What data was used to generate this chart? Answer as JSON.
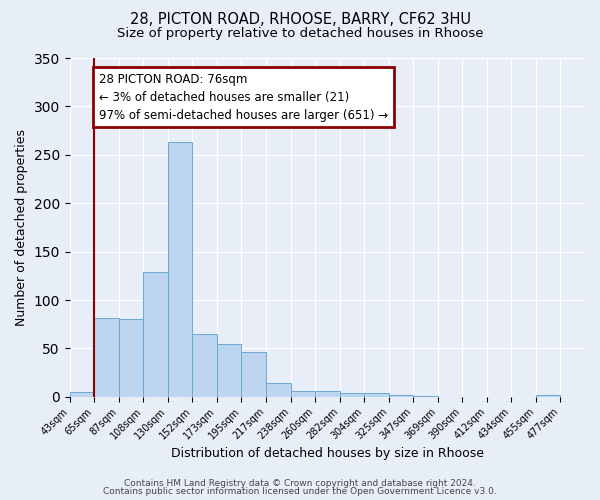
{
  "title1": "28, PICTON ROAD, RHOOSE, BARRY, CF62 3HU",
  "title2": "Size of property relative to detached houses in Rhoose",
  "xlabel": "Distribution of detached houses by size in Rhoose",
  "ylabel": "Number of detached properties",
  "bin_labels": [
    "43sqm",
    "65sqm",
    "87sqm",
    "108sqm",
    "130sqm",
    "152sqm",
    "173sqm",
    "195sqm",
    "217sqm",
    "238sqm",
    "260sqm",
    "282sqm",
    "304sqm",
    "325sqm",
    "347sqm",
    "369sqm",
    "390sqm",
    "412sqm",
    "434sqm",
    "455sqm",
    "477sqm"
  ],
  "bar_values": [
    5,
    81,
    80,
    129,
    263,
    65,
    55,
    46,
    14,
    6,
    6,
    4,
    4,
    2,
    1,
    0,
    0,
    0,
    0,
    2,
    0
  ],
  "bar_color": "#bdd5ee",
  "bar_edge_color": "#6aaad4",
  "ylim": [
    0,
    350
  ],
  "yticks": [
    0,
    50,
    100,
    150,
    200,
    250,
    300,
    350
  ],
  "vline_color": "#8b0000",
  "annotation_line1": "28 PICTON ROAD: 76sqm",
  "annotation_line2": "← 3% of detached houses are smaller (21)",
  "annotation_line3": "97% of semi-detached houses are larger (651) →",
  "annotation_box_color": "#8b0000",
  "footer1": "Contains HM Land Registry data © Crown copyright and database right 2024.",
  "footer2": "Contains public sector information licensed under the Open Government Licence v3.0.",
  "bg_color": "#e8eef8",
  "plot_bg_color": "#e8eef8",
  "grid_color": "#ffffff"
}
